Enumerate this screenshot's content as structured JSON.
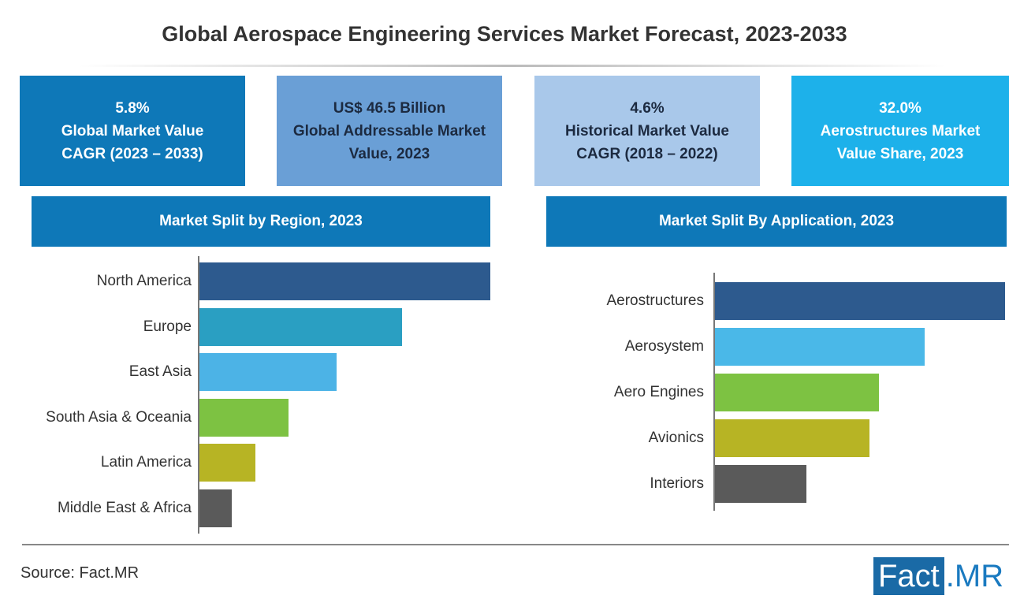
{
  "chart_data": [
    {
      "type": "bar",
      "orientation": "horizontal",
      "title": "Market Split by Region, 2023",
      "categories": [
        "North America",
        "Europe",
        "East Asia",
        "South Asia & Oceania",
        "Latin America",
        "Middle East & Africa"
      ],
      "values": [
        369,
        257,
        174,
        113,
        71,
        41
      ],
      "colors": [
        "#2d5a8e",
        "#2a9fc2",
        "#4cb3e6",
        "#7dc242",
        "#b7b424",
        "#5a5a5a"
      ]
    },
    {
      "type": "bar",
      "orientation": "horizontal",
      "title": "Market Split By Application, 2023",
      "categories": [
        "Aerostructures",
        "Aerosystem",
        "Aero Engines",
        "Avionics",
        "Interiors"
      ],
      "values": [
        368,
        266,
        208,
        196,
        116
      ],
      "colors": [
        "#2d5a8e",
        "#4ab8e8",
        "#7dc242",
        "#b7b424",
        "#5a5a5a"
      ]
    }
  ],
  "title": "Global Aerospace Engineering Services Market Forecast, 2023-2033",
  "kpis": [
    {
      "lines": [
        "5.8%",
        "Global Market Value",
        "CAGR (2023 – 2033)"
      ],
      "bg": "#0e78b8",
      "fg": "#ffffff"
    },
    {
      "lines": [
        "US$ 46.5 Billion",
        "Global Addressable Market",
        "Value, 2023"
      ],
      "bg": "#6a9fd6",
      "fg": "#1c2a40"
    },
    {
      "lines": [
        "4.6%",
        "Historical Market Value",
        "CAGR (2018 – 2022)"
      ],
      "bg": "#a9c8ea",
      "fg": "#1c2a40"
    },
    {
      "lines": [
        "32.0%",
        "Aerostructures Market",
        "Value Share, 2023"
      ],
      "bg": "#1db1ea",
      "fg": "#ffffff"
    }
  ],
  "source": "Source: Fact.MR",
  "logo": {
    "part1": "Fact",
    "part2": ".MR"
  }
}
